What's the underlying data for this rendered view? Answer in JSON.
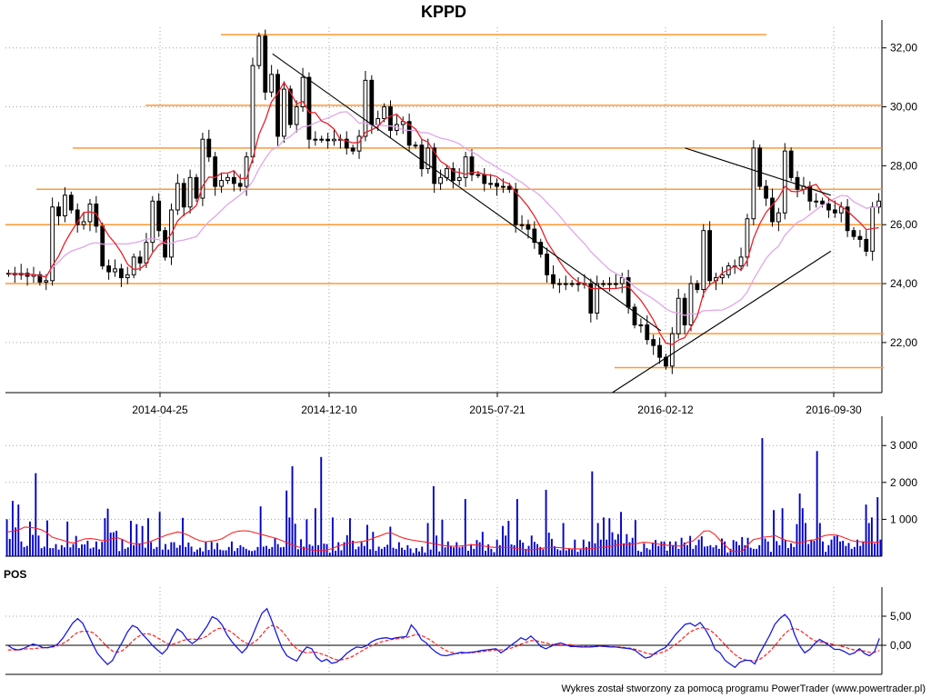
{
  "title": "KPPD",
  "credit": "Wykres został stworzony za pomocą programu PowerTrader (www.powertrader.pl)",
  "colors": {
    "grid": "#a0a0a0",
    "horizontal_levels": "#ff9933",
    "ma_fast": "#e8202a",
    "ma_slow": "#e0a6e8",
    "volume_bars": "#0000c8",
    "volume_ma": "#ff2020",
    "pos_line": "#1a1ae0",
    "pos_signal": "#ff2020",
    "trendlines": "#000000"
  },
  "chart_data": [
    {
      "type": "candlestick",
      "name": "price",
      "title": "KPPD",
      "x_tick_labels": [
        "2014-04-25",
        "2014-12-10",
        "2015-07-21",
        "2016-02-12",
        "2016-09-30"
      ],
      "y_tick_labels": [
        "22,00",
        "24,00",
        "26,00",
        "28,00",
        "30,00",
        "32,00"
      ],
      "ylim": [
        20.3,
        32.7
      ],
      "grid": true,
      "horizontal_levels": [
        32.45,
        30.05,
        28.6,
        27.2,
        26.0,
        24.0,
        22.3,
        21.15
      ],
      "trendlines": [
        {
          "from": [
            "2014-12",
            31.8
          ],
          "to": [
            "2016-04",
            22.4
          ]
        },
        {
          "from": [
            "2016-05",
            28.6
          ],
          "to": [
            "2016-11",
            27.0
          ]
        },
        {
          "from": [
            "2016-02",
            20.3
          ],
          "to": [
            "2016-11",
            25.1
          ]
        }
      ],
      "close_path": [
        24.35,
        24.3,
        24.35,
        24.25,
        24.3,
        24.05,
        24.1,
        26.6,
        26.3,
        27.0,
        26.5,
        26.0,
        26.1,
        26.7,
        25.95,
        24.6,
        24.4,
        24.5,
        24.2,
        24.3,
        24.9,
        24.7,
        25.4,
        26.8,
        25.8,
        24.9,
        26.5,
        27.4,
        26.6,
        27.6,
        26.9,
        28.9,
        28.3,
        27.3,
        27.5,
        27.6,
        27.4,
        27.3,
        28.3,
        31.4,
        32.4,
        30.5,
        31.1,
        29.0,
        30.6,
        29.4,
        30.0,
        31.0,
        28.9,
        28.9,
        28.9,
        28.85,
        28.9,
        28.9,
        28.6,
        28.5,
        29.0,
        30.9,
        29.4,
        29.6,
        30.0,
        29.2,
        29.4,
        29.5,
        28.7,
        28.7,
        27.9,
        28.6,
        27.4,
        27.6,
        27.9,
        27.5,
        27.6,
        28.3,
        27.7,
        27.7,
        27.4,
        27.4,
        27.3,
        27.3,
        27.2,
        26.0,
        26.0,
        25.85,
        25.4,
        25.0,
        24.3,
        24.0,
        24.0,
        24.0,
        24.0,
        24.0,
        24.0,
        23.0,
        24.0,
        24.0,
        24.0,
        24.0,
        24.2,
        23.2,
        22.6,
        22.6,
        22.1,
        21.9,
        21.5,
        21.2,
        22.3,
        23.5,
        22.6,
        24.0,
        23.8,
        25.8,
        24.1,
        24.2,
        24.3,
        24.6,
        24.6,
        24.9,
        26.2,
        28.6,
        27.3,
        26.9,
        26.1,
        26.4,
        28.5,
        27.6,
        27.2,
        27.3,
        26.8,
        26.8,
        26.7,
        26.5,
        26.4,
        26.6,
        25.8,
        25.6,
        25.5,
        25.1,
        26.6,
        26.8
      ]
    },
    {
      "type": "bar",
      "name": "volume",
      "y_tick_labels": [
        "1 000",
        "2 000",
        "3 000"
      ],
      "ylim": [
        0,
        3350
      ],
      "grid": true,
      "values": [
        1000,
        470,
        1500,
        780,
        1400,
        400,
        250,
        280,
        940,
        580,
        2250,
        560,
        220,
        260,
        970,
        220,
        220,
        330,
        180,
        300,
        240,
        940,
        240,
        330,
        550,
        220,
        320,
        320,
        420,
        210,
        240,
        400,
        190,
        390,
        1030,
        1290,
        640,
        650,
        690,
        140,
        470,
        200,
        240,
        960,
        300,
        870,
        350,
        820,
        230,
        1030,
        380,
        200,
        250,
        1200,
        180,
        330,
        180,
        380,
        380,
        230,
        300,
        1040,
        250,
        370,
        260,
        120,
        180,
        230,
        130,
        380,
        170,
        390,
        190,
        360,
        180,
        160,
        160,
        250,
        400,
        140,
        220,
        300,
        250,
        200,
        160,
        140,
        160,
        250,
        1350,
        260,
        280,
        200,
        250,
        480,
        330,
        240,
        250,
        1780,
        1050,
        2440,
        880,
        190,
        460,
        260,
        1000,
        320,
        280,
        1300,
        300,
        2690,
        340,
        330,
        100,
        1050,
        150,
        380,
        160,
        380,
        570,
        1030,
        420,
        190,
        260,
        380,
        280,
        850,
        190,
        660,
        150,
        260,
        200,
        250,
        310,
        800,
        230,
        200,
        380,
        230,
        170,
        300,
        210,
        90,
        220,
        130,
        260,
        100,
        900,
        180,
        1900,
        560,
        130,
        990,
        240,
        400,
        270,
        240,
        380,
        240,
        260,
        1550,
        150,
        330,
        200,
        440,
        380,
        660,
        150,
        320,
        200,
        110,
        450,
        300,
        820,
        560,
        960,
        320,
        300,
        1550,
        440,
        370,
        200,
        280,
        560,
        390,
        330,
        250,
        190,
        1800,
        640,
        470,
        270,
        190,
        160,
        900,
        160,
        200,
        180,
        450,
        120,
        180,
        450,
        250,
        400,
        2300,
        350,
        900,
        450,
        1050,
        450,
        1030,
        650,
        450,
        600,
        1200,
        350,
        600,
        380,
        500,
        980,
        150,
        120,
        350,
        220,
        180,
        370,
        440,
        280,
        400,
        400,
        150,
        400,
        300,
        400,
        200,
        500,
        370,
        300,
        550,
        200,
        300,
        450,
        540,
        260,
        270,
        300,
        240,
        300,
        200,
        480,
        400,
        100,
        200,
        440,
        400,
        300,
        520,
        300,
        500,
        230,
        200,
        200,
        300,
        3200,
        480,
        400,
        120,
        1250,
        410,
        300,
        1300,
        430,
        220,
        350,
        250,
        870,
        1700,
        1300,
        900,
        330,
        450,
        420,
        2850,
        900,
        400,
        120,
        300,
        450,
        550,
        580,
        400,
        420,
        280,
        360,
        200,
        250,
        450,
        280,
        400,
        1400,
        900,
        1050,
        350,
        1600,
        450
      ],
      "ma": [
        660,
        680,
        720,
        790,
        780,
        760,
        720,
        640,
        520,
        470,
        430,
        380,
        360,
        420,
        470,
        480,
        460,
        430,
        420,
        480,
        500,
        440,
        370,
        340,
        330,
        360,
        400,
        460,
        520,
        580,
        620,
        660,
        620,
        560,
        480,
        420,
        390,
        410,
        430,
        470,
        560,
        640,
        680,
        690,
        680,
        640,
        600,
        560,
        520,
        480,
        420,
        360,
        300,
        250,
        210,
        180,
        160,
        150,
        160,
        200,
        260,
        310,
        350,
        370,
        390,
        410,
        450,
        510,
        560,
        620,
        630,
        560,
        500,
        460,
        430,
        410,
        390,
        360,
        330,
        300,
        280,
        270,
        270,
        280,
        300,
        310,
        300,
        270,
        250,
        240,
        240,
        240,
        230,
        210,
        180,
        170,
        180,
        200,
        230,
        240,
        240,
        230,
        210,
        200,
        200,
        200,
        200,
        220,
        240,
        250,
        270,
        300,
        320,
        330,
        330,
        350,
        380,
        370,
        350,
        320,
        300,
        290,
        280,
        270,
        380,
        410,
        540,
        680,
        690,
        590,
        420,
        280,
        140,
        130,
        130,
        300,
        450,
        480,
        520,
        530,
        560,
        490,
        430,
        400,
        350,
        380,
        420,
        440,
        490,
        560,
        580,
        580,
        540,
        480,
        420,
        400,
        390,
        380,
        380,
        380
      ]
    },
    {
      "type": "line",
      "name": "POS",
      "title": "POS",
      "y_tick_labels": [
        "0,00",
        "5,00"
      ],
      "ylim": [
        -5,
        10
      ],
      "grid": true,
      "series": [
        {
          "values": [
            0.0,
            -0.6,
            -0.8,
            -0.6,
            -0.2,
            0.2,
            0.0,
            -0.4,
            -0.4,
            -0.2,
            0.2,
            1.2,
            2.5,
            3.8,
            4.6,
            3.8,
            2.0,
            0.2,
            -1.4,
            -2.4,
            -3.3,
            -2.6,
            -0.9,
            0.6,
            2.3,
            3.4,
            3.0,
            1.9,
            1.0,
            0.0,
            -0.8,
            -1.5,
            -0.6,
            1.3,
            2.8,
            2.2,
            1.0,
            0.3,
            0.9,
            2.1,
            3.3,
            4.9,
            4.5,
            3.5,
            1.8,
            0.6,
            -0.4,
            -1.3,
            -0.4,
            1.4,
            3.5,
            5.5,
            6.3,
            4.2,
            1.8,
            -0.4,
            -1.8,
            -2.3,
            -2.7,
            -1.3,
            -0.3,
            -0.6,
            -2.1,
            -2.8,
            -2.4,
            -3.1,
            -2.9,
            -2.3,
            -1.4,
            -0.8,
            -0.3,
            -0.4,
            -0.1,
            0.6,
            1.0,
            1.2,
            1.3,
            1.1,
            1.3,
            1.4,
            1.5,
            3.5,
            2.5,
            1.0,
            0.4,
            -0.5,
            -1.2,
            -1.7,
            -1.8,
            -1.6,
            -1.4,
            -1.2,
            -1.3,
            -1.2,
            -1.1,
            -0.9,
            -0.8,
            -0.7,
            -0.6,
            -1.3,
            -0.7,
            0.0,
            0.6,
            1.3,
            0.9,
            1.6,
            0.8,
            -0.2,
            -0.6,
            -0.2,
            0.2,
            0.4,
            0.1,
            -0.2,
            -0.2,
            -0.3,
            -0.3,
            -0.3,
            -0.2,
            -0.1,
            -0.2,
            -0.3,
            -0.3,
            -0.4,
            -0.5,
            -0.6,
            -0.9,
            -1.6,
            -2.2,
            -2.0,
            -1.3,
            -0.8,
            -0.4,
            0.6,
            1.8,
            2.7,
            3.6,
            3.8,
            3.3,
            3.9,
            2.8,
            1.3,
            -0.7,
            -1.3,
            -2.6,
            -3.2,
            -3.8,
            -2.9,
            -2.6,
            -2.6,
            -3.2,
            -1.3,
            0.2,
            1.8,
            3.6,
            4.6,
            5.3,
            4.3,
            1.8,
            -0.1,
            -1.3,
            -0.7,
            0.3,
            1.0,
            0.5,
            -0.1,
            -0.7,
            -0.7,
            -1.1,
            -1.6,
            -1.3,
            -0.6,
            -1.4,
            -1.8,
            -1.1,
            1.2
          ]
        },
        {
          "values": [
            -0.8,
            -0.8,
            -0.8,
            -0.7,
            -0.6,
            -0.6,
            -0.5,
            -0.4,
            -0.4,
            -0.3,
            -0.1,
            0.3,
            0.8,
            1.6,
            2.2,
            2.4,
            2.4,
            2.2,
            1.5,
            0.6,
            -0.3,
            -1.0,
            -1.2,
            -0.9,
            -0.2,
            0.7,
            1.4,
            1.9,
            2.0,
            1.8,
            1.3,
            0.8,
            0.3,
            0.2,
            0.4,
            0.8,
            1.0,
            1.1,
            1.0,
            1.2,
            1.6,
            2.3,
            2.8,
            3.0,
            2.7,
            2.2,
            1.5,
            0.8,
            0.3,
            0.3,
            0.9,
            1.8,
            2.9,
            3.4,
            3.2,
            2.5,
            1.4,
            0.2,
            -0.6,
            -1.1,
            -1.3,
            -1.2,
            -1.2,
            -1.5,
            -1.8,
            -2.2,
            -2.5,
            -2.5,
            -2.3,
            -2.0,
            -1.5,
            -1.0,
            -0.5,
            -0.1,
            0.3,
            0.6,
            0.8,
            1.0,
            1.1,
            1.2,
            1.3,
            1.6,
            1.9,
            1.7,
            1.3,
            0.8,
            0.2,
            -0.4,
            -0.9,
            -1.2,
            -1.4,
            -1.4,
            -1.3,
            -1.3,
            -1.2,
            -1.1,
            -1.0,
            -0.9,
            -0.8,
            -0.8,
            -0.7,
            -0.5,
            -0.2,
            0.2,
            0.5,
            0.8,
            0.8,
            0.6,
            0.4,
            0.2,
            0.1,
            0.1,
            0.1,
            0.1,
            0.0,
            -0.1,
            -0.2,
            -0.2,
            -0.2,
            -0.2,
            -0.2,
            -0.2,
            -0.3,
            -0.3,
            -0.4,
            -0.5,
            -0.7,
            -1.0,
            -1.3,
            -1.5,
            -1.5,
            -1.3,
            -1.0,
            -0.5,
            0.1,
            0.8,
            1.6,
            2.3,
            2.7,
            3.0,
            3.0,
            2.6,
            1.9,
            1.0,
            0.1,
            -0.8,
            -1.6,
            -2.2,
            -2.5,
            -2.6,
            -2.7,
            -2.4,
            -1.8,
            -1.0,
            -0.1,
            1.0,
            2.0,
            2.7,
            2.9,
            2.6,
            2.0,
            1.3,
            0.8,
            0.6,
            0.5,
            0.3,
            0.1,
            -0.1,
            -0.3,
            -0.6,
            -0.8,
            -0.9,
            -1.0,
            -1.2,
            -1.2,
            -0.9
          ]
        }
      ]
    }
  ]
}
